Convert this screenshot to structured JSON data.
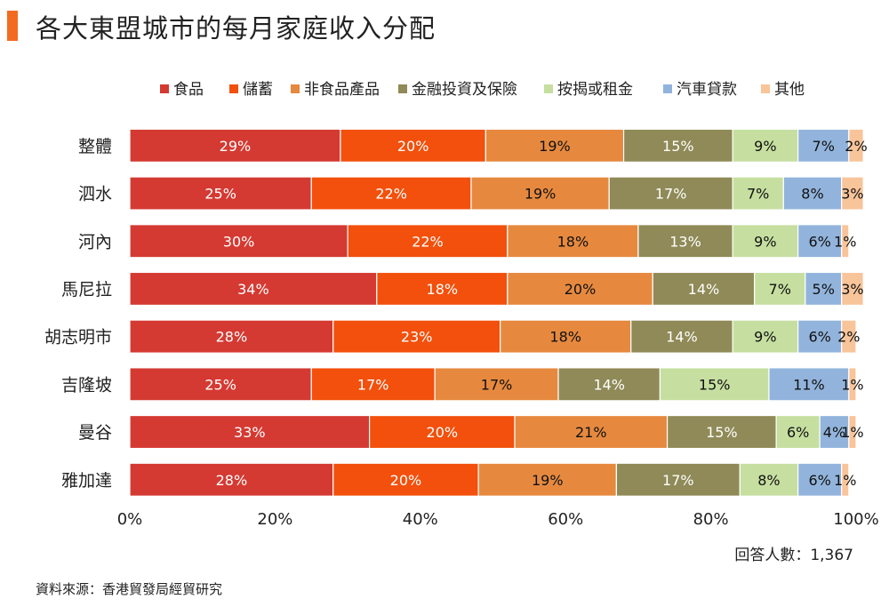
{
  "page": {
    "title": "各大東盟城市的每月家庭收入分配",
    "respondents": "回答人數：1,367",
    "source": "資料來源：香港貿發局經貿研究"
  },
  "chart_data": {
    "type": "bar",
    "orientation": "horizontal",
    "stacked": true,
    "title": "各大東盟城市的每月家庭收入分配",
    "xlabel": "",
    "ylabel": "",
    "xlim": [
      0,
      100
    ],
    "x_ticks": [
      "0%",
      "20%",
      "40%",
      "60%",
      "80%",
      "100%"
    ],
    "legend_position": "top",
    "categories": [
      "整體",
      "泗水",
      "河內",
      "馬尼拉",
      "胡志明市",
      "吉隆坡",
      "曼谷",
      "雅加達"
    ],
    "series": [
      {
        "name": "食品",
        "color": "#d43a32",
        "values": [
          29,
          25,
          30,
          34,
          28,
          25,
          33,
          28
        ]
      },
      {
        "name": "儲蓄",
        "color": "#f2500c",
        "values": [
          20,
          22,
          22,
          18,
          23,
          17,
          20,
          20
        ]
      },
      {
        "name": "非食品產品",
        "color": "#e6893f",
        "values": [
          19,
          19,
          18,
          20,
          18,
          17,
          21,
          19
        ]
      },
      {
        "name": "金融投資及保險",
        "color": "#8f8a57",
        "values": [
          15,
          17,
          13,
          14,
          14,
          14,
          15,
          17
        ]
      },
      {
        "name": "按揭或租金",
        "color": "#c6dfa0",
        "values": [
          9,
          7,
          9,
          7,
          9,
          15,
          6,
          8
        ]
      },
      {
        "name": "汽車貸款",
        "color": "#92b4dc",
        "values": [
          7,
          8,
          6,
          5,
          6,
          11,
          4,
          6
        ]
      },
      {
        "name": "其他",
        "color": "#f8c499",
        "values": [
          2,
          3,
          1,
          3,
          2,
          1,
          1,
          1
        ]
      }
    ],
    "label_colors": {
      "dark_bg": "#ffffff",
      "light_bg": "#111111"
    }
  }
}
